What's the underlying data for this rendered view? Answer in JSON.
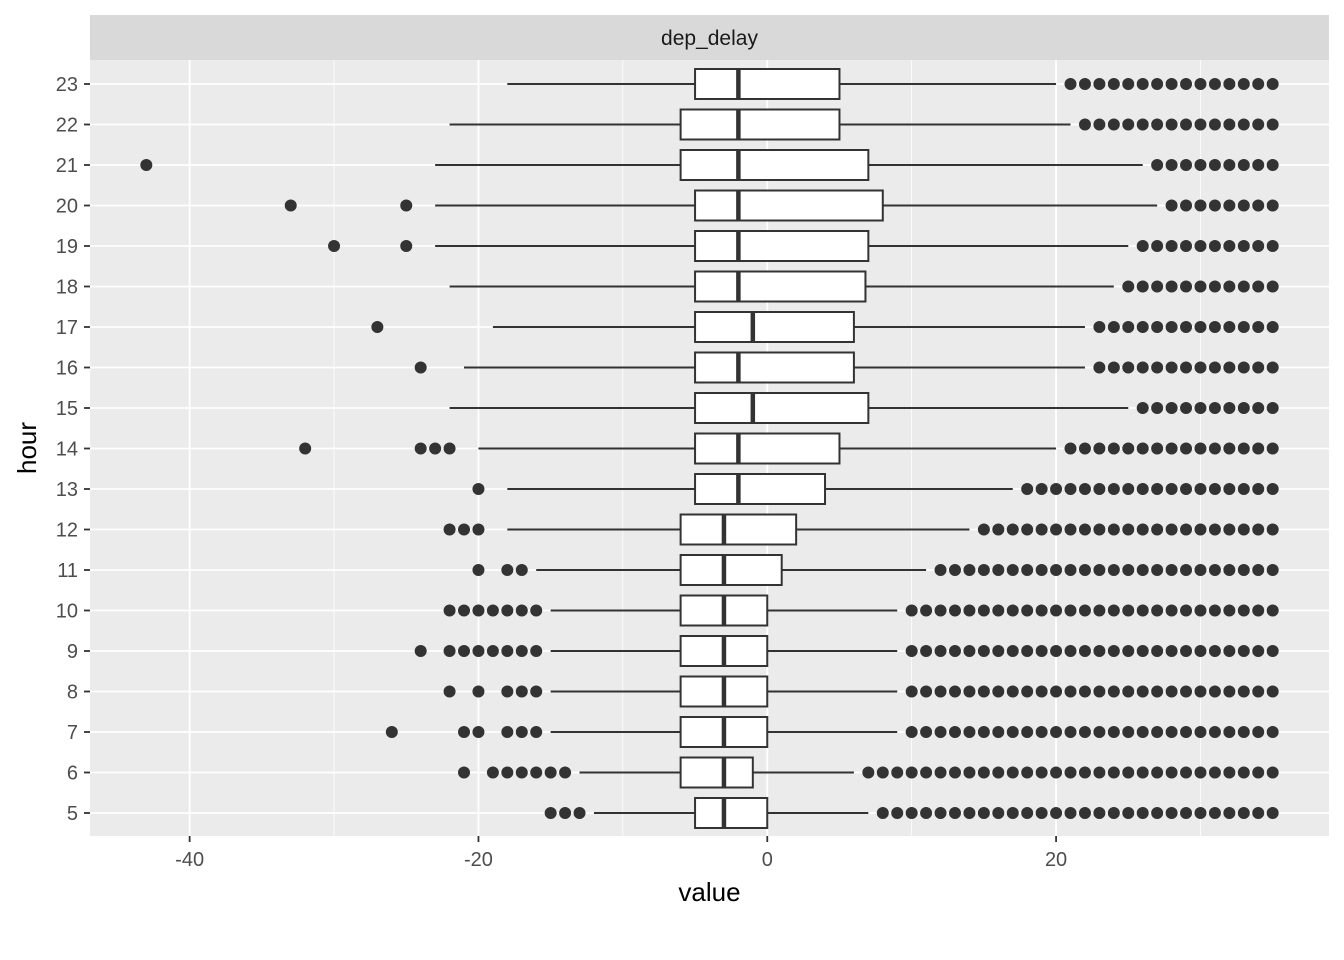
{
  "chart_data": {
    "type": "boxplot",
    "orientation": "horizontal",
    "facet_label": "dep_delay",
    "xlabel": "value",
    "ylabel": "hour",
    "xlim": [
      -46.9,
      38.9
    ],
    "x_ticks": [
      -40,
      -20,
      0,
      20
    ],
    "x_tick_labels": [
      "-40",
      "-20",
      "0",
      "20"
    ],
    "grid": true,
    "categories": [
      "5",
      "6",
      "7",
      "8",
      "9",
      "10",
      "11",
      "12",
      "13",
      "14",
      "15",
      "16",
      "17",
      "18",
      "19",
      "20",
      "21",
      "22",
      "23"
    ],
    "boxes": [
      {
        "hour": "5",
        "whisker_low": -12,
        "q1": -5,
        "median": -3,
        "q3": 0,
        "whisker_high": 7,
        "outliers_low": [
          -15,
          -14,
          -13
        ],
        "outliers_high_range": [
          8,
          35
        ]
      },
      {
        "hour": "6",
        "whisker_low": -13,
        "q1": -6,
        "median": -3,
        "q3": -1,
        "whisker_high": 6,
        "outliers_low": [
          -21,
          -19,
          -18,
          -17,
          -16,
          -15,
          -14
        ],
        "outliers_high_range": [
          7,
          35
        ]
      },
      {
        "hour": "7",
        "whisker_low": -15,
        "q1": -6,
        "median": -3,
        "q3": 0,
        "whisker_high": 9,
        "outliers_low": [
          -26,
          -21,
          -20,
          -18,
          -17,
          -16
        ],
        "outliers_high_range": [
          10,
          35
        ]
      },
      {
        "hour": "8",
        "whisker_low": -15,
        "q1": -6,
        "median": -3,
        "q3": 0,
        "whisker_high": 9,
        "outliers_low": [
          -22,
          -20,
          -18,
          -17,
          -16
        ],
        "outliers_high_range": [
          10,
          35
        ]
      },
      {
        "hour": "9",
        "whisker_low": -15,
        "q1": -6,
        "median": -3,
        "q3": 0,
        "whisker_high": 9,
        "outliers_low": [
          -24,
          -22,
          -21,
          -20,
          -19,
          -18,
          -17,
          -16
        ],
        "outliers_high_range": [
          10,
          35
        ]
      },
      {
        "hour": "10",
        "whisker_low": -15,
        "q1": -6,
        "median": -3,
        "q3": 0,
        "whisker_high": 9,
        "outliers_low": [
          -22,
          -21,
          -20,
          -19,
          -18,
          -17,
          -16
        ],
        "outliers_high_range": [
          10,
          35
        ]
      },
      {
        "hour": "11",
        "whisker_low": -16,
        "q1": -6,
        "median": -3,
        "q3": 1,
        "whisker_high": 11,
        "outliers_low": [
          -20,
          -18,
          -17
        ],
        "outliers_high_range": [
          12,
          35
        ]
      },
      {
        "hour": "12",
        "whisker_low": -18,
        "q1": -6,
        "median": -3,
        "q3": 2,
        "whisker_high": 14,
        "outliers_low": [
          -22,
          -21,
          -20
        ],
        "outliers_high_range": [
          15,
          35
        ]
      },
      {
        "hour": "13",
        "whisker_low": -18,
        "q1": -5,
        "median": -2,
        "q3": 4,
        "whisker_high": 17,
        "outliers_low": [
          -20
        ],
        "outliers_high_range": [
          18,
          35
        ]
      },
      {
        "hour": "14",
        "whisker_low": -20,
        "q1": -5,
        "median": -2,
        "q3": 5,
        "whisker_high": 20,
        "outliers_low": [
          -32,
          -24,
          -23,
          -22
        ],
        "outliers_high_range": [
          21,
          35
        ]
      },
      {
        "hour": "15",
        "whisker_low": -22,
        "q1": -5,
        "median": -1,
        "q3": 7,
        "whisker_high": 25,
        "outliers_low": [],
        "outliers_high_range": [
          26,
          35
        ]
      },
      {
        "hour": "16",
        "whisker_low": -21,
        "q1": -5,
        "median": -2,
        "q3": 6,
        "whisker_high": 22,
        "outliers_low": [
          -24
        ],
        "outliers_high_range": [
          23,
          35
        ]
      },
      {
        "hour": "17",
        "whisker_low": -19,
        "q1": -5,
        "median": -1,
        "q3": 6,
        "whisker_high": 22,
        "outliers_low": [
          -27
        ],
        "outliers_high_range": [
          23,
          35
        ]
      },
      {
        "hour": "18",
        "whisker_low": -22,
        "q1": -5,
        "median": -2,
        "q3": 6.8,
        "whisker_high": 24,
        "outliers_low": [],
        "outliers_high_range": [
          25,
          35
        ]
      },
      {
        "hour": "19",
        "whisker_low": -23,
        "q1": -5,
        "median": -2,
        "q3": 7,
        "whisker_high": 25,
        "outliers_low": [
          -30,
          -25
        ],
        "outliers_high_range": [
          26,
          35
        ]
      },
      {
        "hour": "20",
        "whisker_low": -23,
        "q1": -5,
        "median": -2,
        "q3": 8,
        "whisker_high": 27,
        "outliers_low": [
          -33,
          -25
        ],
        "outliers_high_range": [
          28,
          35
        ]
      },
      {
        "hour": "21",
        "whisker_low": -23,
        "q1": -6,
        "median": -2,
        "q3": 7,
        "whisker_high": 26,
        "outliers_low": [
          -43
        ],
        "outliers_high_range": [
          27,
          35
        ]
      },
      {
        "hour": "22",
        "whisker_low": -22,
        "q1": -6,
        "median": -2,
        "q3": 5,
        "whisker_high": 21,
        "outliers_low": [],
        "outliers_high_range": [
          22,
          35
        ]
      },
      {
        "hour": "23",
        "whisker_low": -18,
        "q1": -5,
        "median": -2,
        "q3": 5,
        "whisker_high": 20,
        "outliers_low": [],
        "outliers_high_range": [
          21,
          35
        ]
      }
    ],
    "colors": {
      "panel": "#ebebeb",
      "strip": "#d9d9d9",
      "grid": "#ffffff",
      "box": "#333333",
      "text": "#4d4d4d"
    }
  }
}
